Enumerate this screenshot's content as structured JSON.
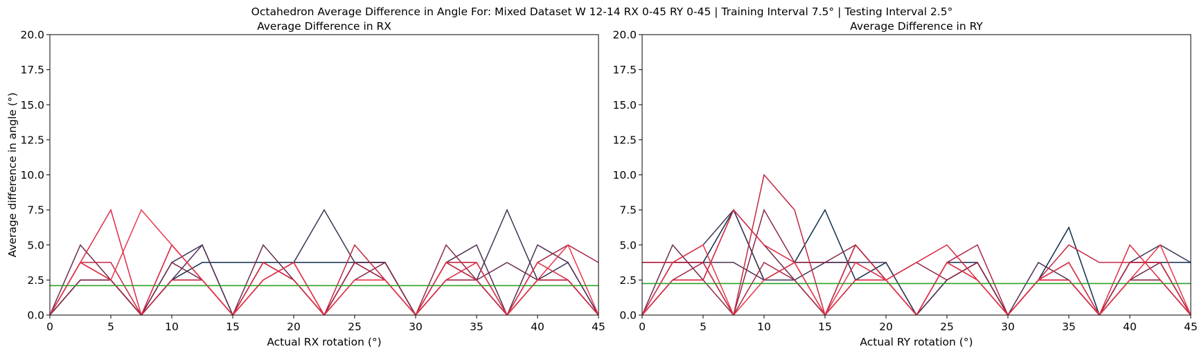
{
  "figure": {
    "suptitle": "Octahedron Average Difference in Angle For: Mixed Dataset W 12-14 RX 0-45 RY 0-45 | Training Interval 7.5° | Testing Interval 2.5°"
  },
  "chart_data": [
    {
      "type": "line",
      "title": "Average Difference in RX",
      "xlabel": "Actual RX rotation (°)",
      "ylabel": "Average difference in angle (°)",
      "xlim": [
        0,
        45
      ],
      "ylim": [
        0,
        20
      ],
      "xticks": [
        "0",
        "5",
        "10",
        "15",
        "20",
        "25",
        "30",
        "35",
        "40",
        "45"
      ],
      "yticks": [
        "0.0",
        "2.5",
        "5.0",
        "7.5",
        "10.0",
        "12.5",
        "15.0",
        "17.5",
        "20.0"
      ],
      "grid": false,
      "legend": "none",
      "x": [
        0,
        2.5,
        5,
        7.5,
        10,
        12.5,
        15,
        17.5,
        20,
        22.5,
        25,
        27.5,
        30,
        32.5,
        35,
        37.5,
        40,
        42.5,
        45
      ],
      "mean_line": {
        "value": 2.1,
        "color": "#2ca02c"
      },
      "series": [
        {
          "color": "#0d2c4a",
          "values": [
            0,
            2.5,
            2.5,
            0,
            2.5,
            3.75,
            3.75,
            3.75,
            3.75,
            3.75,
            3.75,
            3.75,
            0,
            3.75,
            3.75,
            0,
            2.5,
            2.5,
            0
          ]
        },
        {
          "color": "#3b3355",
          "values": [
            0,
            2.5,
            2.5,
            0,
            3.75,
            5.0,
            0,
            2.5,
            3.75,
            7.5,
            3.75,
            3.75,
            0,
            2.5,
            2.5,
            7.5,
            2.5,
            3.75,
            0
          ]
        },
        {
          "color": "#4e2e52",
          "values": [
            0,
            3.75,
            2.5,
            0,
            2.5,
            5.0,
            0,
            3.75,
            2.5,
            0,
            3.75,
            3.75,
            0,
            3.75,
            5.0,
            0,
            5.0,
            3.75,
            0
          ]
        },
        {
          "color": "#6a2a4c",
          "values": [
            0,
            5.0,
            2.5,
            0,
            3.75,
            2.5,
            0,
            5.0,
            2.5,
            0,
            3.75,
            2.5,
            0,
            3.75,
            2.5,
            3.75,
            2.5,
            2.5,
            0
          ]
        },
        {
          "color": "#8b2847",
          "values": [
            0,
            2.5,
            2.5,
            0,
            2.5,
            2.5,
            0,
            3.75,
            2.5,
            0,
            2.5,
            3.75,
            0,
            5.0,
            2.5,
            0,
            2.5,
            2.5,
            0
          ]
        },
        {
          "color": "#a82644",
          "values": [
            0,
            3.75,
            2.5,
            0,
            5.0,
            2.5,
            0,
            2.5,
            3.75,
            0,
            3.75,
            2.5,
            0,
            2.5,
            2.5,
            0,
            3.75,
            5.0,
            3.75
          ]
        },
        {
          "color": "#c42642",
          "values": [
            0,
            3.75,
            3.75,
            0,
            2.5,
            2.5,
            0,
            2.5,
            3.75,
            0,
            5.0,
            2.5,
            0,
            3.75,
            2.5,
            0,
            2.5,
            2.5,
            0
          ]
        },
        {
          "color": "#dc2942",
          "values": [
            0,
            3.75,
            7.5,
            0,
            5.0,
            2.5,
            0,
            3.75,
            2.5,
            0,
            2.5,
            2.5,
            0,
            2.5,
            3.75,
            0,
            3.75,
            2.5,
            0
          ]
        },
        {
          "color": "#e8354a",
          "values": [
            0,
            3.75,
            2.5,
            7.5,
            5.0,
            2.5,
            0,
            2.5,
            3.75,
            0,
            2.5,
            2.5,
            0,
            3.75,
            3.75,
            0,
            2.5,
            5.0,
            0
          ]
        }
      ]
    },
    {
      "type": "line",
      "title": "Average Difference in RY",
      "xlabel": "Actual RY rotation (°)",
      "ylabel": "",
      "xlim": [
        0,
        45
      ],
      "ylim": [
        0,
        20
      ],
      "xticks": [
        "0",
        "5",
        "10",
        "15",
        "20",
        "25",
        "30",
        "35",
        "40",
        "45"
      ],
      "yticks": [
        "0.0",
        "2.5",
        "5.0",
        "7.5",
        "10.0",
        "12.5",
        "15.0",
        "17.5",
        "20.0"
      ],
      "grid": false,
      "legend": "none",
      "x": [
        0,
        2.5,
        5,
        7.5,
        10,
        12.5,
        15,
        17.5,
        20,
        22.5,
        25,
        27.5,
        30,
        32.5,
        35,
        37.5,
        40,
        42.5,
        45
      ],
      "mean_line": {
        "value": 2.25,
        "color": "#2ca02c"
      },
      "series": [
        {
          "color": "#0d2c4a",
          "values": [
            0,
            3.75,
            3.75,
            7.5,
            2.5,
            3.75,
            7.5,
            2.5,
            3.75,
            0,
            3.75,
            3.75,
            0,
            2.5,
            6.25,
            0,
            3.75,
            3.75,
            3.75
          ]
        },
        {
          "color": "#3b3355",
          "values": [
            0,
            3.75,
            5.0,
            7.5,
            2.5,
            2.5,
            3.75,
            3.75,
            3.75,
            0,
            2.5,
            3.75,
            0,
            2.5,
            3.75,
            0,
            3.75,
            5.0,
            3.75
          ]
        },
        {
          "color": "#4e2e52",
          "values": [
            3.75,
            3.75,
            3.75,
            3.75,
            2.5,
            3.75,
            3.75,
            3.75,
            2.5,
            0,
            2.5,
            3.75,
            0,
            3.75,
            2.5,
            0,
            2.5,
            2.5,
            0
          ]
        },
        {
          "color": "#6a2a4c",
          "values": [
            0,
            5.0,
            2.5,
            7.5,
            5.0,
            2.5,
            0,
            5.0,
            2.5,
            0,
            3.75,
            2.5,
            0,
            2.5,
            3.75,
            0,
            2.5,
            3.75,
            0
          ]
        },
        {
          "color": "#8b2847",
          "values": [
            0,
            2.5,
            2.5,
            0,
            7.5,
            3.75,
            3.75,
            5.0,
            2.5,
            3.75,
            2.5,
            3.75,
            0,
            2.5,
            2.5,
            0,
            2.5,
            2.5,
            0
          ]
        },
        {
          "color": "#a82644",
          "values": [
            0,
            2.5,
            3.75,
            0,
            3.75,
            2.5,
            0,
            2.5,
            2.5,
            0,
            3.75,
            5.0,
            0,
            2.5,
            2.5,
            0,
            3.75,
            3.75,
            0
          ]
        },
        {
          "color": "#c42642",
          "values": [
            3.75,
            3.75,
            3.75,
            0,
            10.0,
            7.5,
            0,
            5.0,
            2.5,
            0,
            3.75,
            2.5,
            0,
            2.5,
            5.0,
            3.75,
            3.75,
            3.75,
            0
          ]
        },
        {
          "color": "#dc2942",
          "values": [
            0,
            2.5,
            2.5,
            7.5,
            5.0,
            3.75,
            0,
            2.5,
            2.5,
            3.75,
            5.0,
            2.5,
            0,
            2.5,
            2.5,
            0,
            5.0,
            2.5,
            0
          ]
        },
        {
          "color": "#e8354a",
          "values": [
            0,
            3.75,
            5.0,
            0,
            2.5,
            3.75,
            0,
            3.75,
            2.5,
            0,
            3.75,
            2.5,
            0,
            2.5,
            3.75,
            0,
            2.5,
            5.0,
            0
          ]
        }
      ]
    }
  ]
}
